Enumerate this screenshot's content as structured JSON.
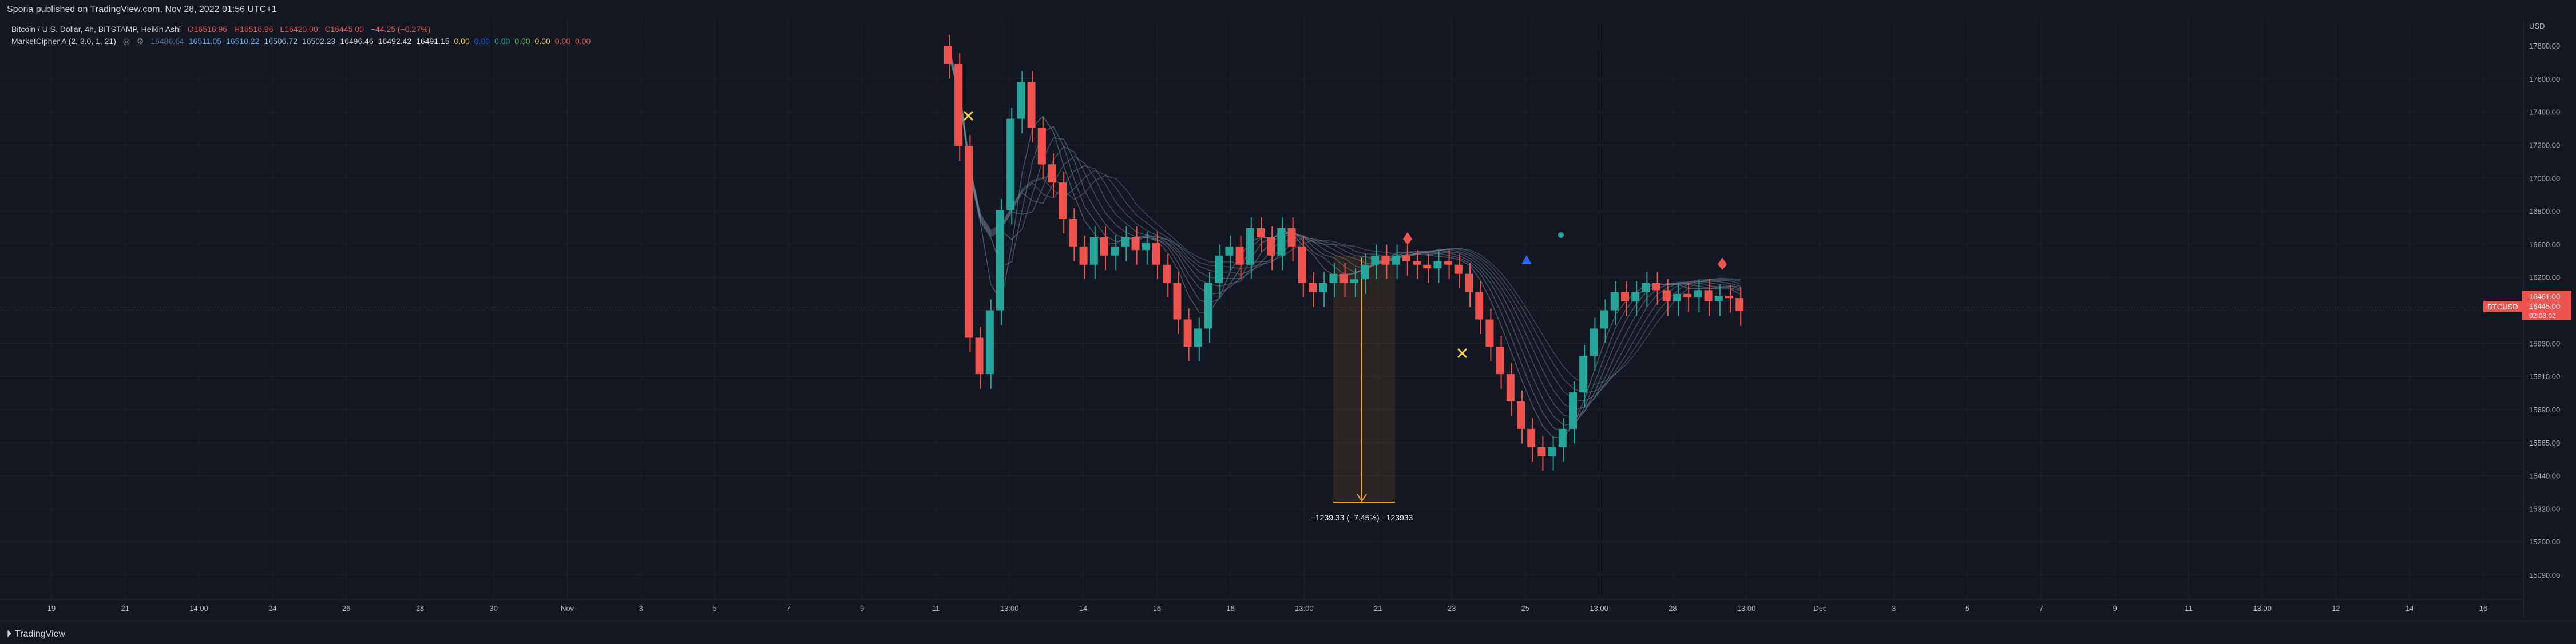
{
  "header": {
    "published": "Sporia published on TradingView.com, Nov 28, 2022 01:56 UTC+1"
  },
  "legend": {
    "symbol": "Bitcoin / U.S. Dollar, 4h, BITSTAMP, Heikin Ashi",
    "o": "O16516.96",
    "h": "H16516.96",
    "l": "L16420.00",
    "c": "C16445.00",
    "chg": "−44.25 (−0.27%)",
    "indicator": "MarketCipher A (2, 3.0, 1, 21)",
    "ind_values": [
      {
        "text": "16486.64",
        "color": "#5a7a9c"
      },
      {
        "text": "16511.05",
        "color": "#5aa9e6"
      },
      {
        "text": "16510.22",
        "color": "#5aa9e6"
      },
      {
        "text": "16506.72",
        "color": "#9cc3e0"
      },
      {
        "text": "16502.23",
        "color": "#b0c4d4"
      },
      {
        "text": "16496.46",
        "color": "#c7d1da"
      },
      {
        "text": "16492.42",
        "color": "#d8dde3"
      },
      {
        "text": "16491.15",
        "color": "#e6e9ed"
      },
      {
        "text": "0.00",
        "color": "#f5d042"
      },
      {
        "text": "0.00",
        "color": "#2962ff"
      },
      {
        "text": "0.00",
        "color": "#26a69a"
      },
      {
        "text": "0.00",
        "color": "#66bb6a"
      },
      {
        "text": "0.00",
        "color": "#f5d042"
      },
      {
        "text": "0.00",
        "color": "#ef5350"
      },
      {
        "text": "0.00",
        "color": "#ef5350"
      }
    ]
  },
  "price_axis": {
    "currency": "USD",
    "ticks": [
      "17800.00",
      "17600.00",
      "17400.00",
      "17200.00",
      "17000.00",
      "16800.00",
      "16600.00",
      "16200.00",
      "16050.00",
      "15930.00",
      "15810.00",
      "15690.00",
      "15565.00",
      "15440.00",
      "15320.00",
      "15200.00",
      "15090.00"
    ],
    "symbol_tag": "BTCUSD",
    "last_price_lines": [
      "16461.00",
      "16445.00",
      "02:03:02"
    ]
  },
  "time_axis": {
    "ticks": [
      "19",
      "21",
      "14:00",
      "24",
      "26",
      "28",
      "30",
      "Nov",
      "3",
      "5",
      "7",
      "9",
      "11",
      "13:00",
      "14",
      "16",
      "18",
      "13:00",
      "21",
      "23",
      "25",
      "13:00",
      "28",
      "13:00",
      "Dec",
      "3",
      "5",
      "7",
      "9",
      "11",
      "13:00",
      "12",
      "14",
      "16"
    ]
  },
  "measure": {
    "label": "−1239.33 (−7.45%) −123933"
  },
  "footer": {
    "brand": "TradingView"
  },
  "colors": {
    "bg": "#131722",
    "up": "#26a69a",
    "down": "#ef5350",
    "ribbon": "#5d6f8a",
    "measure": "#f5a623"
  },
  "chart_data": {
    "type": "candlestick",
    "subtype": "heikin-ashi",
    "timeframe": "4h",
    "series": [
      {
        "name": "BTCUSD",
        "candles": [
          {
            "o": 17900,
            "c": 17800
          },
          {
            "o": 17800,
            "c": 17350
          },
          {
            "o": 17350,
            "c": 16300
          },
          {
            "o": 16300,
            "c": 16100
          },
          {
            "o": 16100,
            "c": 16450
          },
          {
            "o": 16450,
            "c": 17000
          },
          {
            "o": 17000,
            "c": 17500
          },
          {
            "o": 17500,
            "c": 17700
          },
          {
            "o": 17700,
            "c": 17450
          },
          {
            "o": 17450,
            "c": 17250
          },
          {
            "o": 17250,
            "c": 17150
          },
          {
            "o": 17150,
            "c": 16950
          },
          {
            "o": 16950,
            "c": 16800
          },
          {
            "o": 16800,
            "c": 16700
          },
          {
            "o": 16700,
            "c": 16850
          },
          {
            "o": 16850,
            "c": 16750
          },
          {
            "o": 16750,
            "c": 16800
          },
          {
            "o": 16800,
            "c": 16850
          },
          {
            "o": 16850,
            "c": 16780
          },
          {
            "o": 16780,
            "c": 16820
          },
          {
            "o": 16820,
            "c": 16700
          },
          {
            "o": 16700,
            "c": 16600
          },
          {
            "o": 16600,
            "c": 16400
          },
          {
            "o": 16400,
            "c": 16250
          },
          {
            "o": 16250,
            "c": 16350
          },
          {
            "o": 16350,
            "c": 16600
          },
          {
            "o": 16600,
            "c": 16750
          },
          {
            "o": 16750,
            "c": 16800
          },
          {
            "o": 16800,
            "c": 16700
          },
          {
            "o": 16700,
            "c": 16900
          },
          {
            "o": 16900,
            "c": 16850
          },
          {
            "o": 16850,
            "c": 16750
          },
          {
            "o": 16750,
            "c": 16900
          },
          {
            "o": 16900,
            "c": 16800
          },
          {
            "o": 16800,
            "c": 16600
          },
          {
            "o": 16600,
            "c": 16550
          },
          {
            "o": 16550,
            "c": 16600
          },
          {
            "o": 16600,
            "c": 16650
          },
          {
            "o": 16650,
            "c": 16600
          },
          {
            "o": 16600,
            "c": 16620
          },
          {
            "o": 16620,
            "c": 16700
          },
          {
            "o": 16700,
            "c": 16750
          },
          {
            "o": 16750,
            "c": 16700
          },
          {
            "o": 16700,
            "c": 16750
          },
          {
            "o": 16750,
            "c": 16720
          },
          {
            "o": 16720,
            "c": 16700
          },
          {
            "o": 16700,
            "c": 16680
          },
          {
            "o": 16680,
            "c": 16720
          },
          {
            "o": 16720,
            "c": 16700
          },
          {
            "o": 16700,
            "c": 16650
          },
          {
            "o": 16650,
            "c": 16550
          },
          {
            "o": 16550,
            "c": 16400
          },
          {
            "o": 16400,
            "c": 16250
          },
          {
            "o": 16250,
            "c": 16100
          },
          {
            "o": 16100,
            "c": 15950
          },
          {
            "o": 15950,
            "c": 15800
          },
          {
            "o": 15800,
            "c": 15700
          },
          {
            "o": 15700,
            "c": 15650
          },
          {
            "o": 15650,
            "c": 15700
          },
          {
            "o": 15700,
            "c": 15800
          },
          {
            "o": 15800,
            "c": 16000
          },
          {
            "o": 16000,
            "c": 16200
          },
          {
            "o": 16200,
            "c": 16350
          },
          {
            "o": 16350,
            "c": 16450
          },
          {
            "o": 16450,
            "c": 16550
          },
          {
            "o": 16550,
            "c": 16500
          },
          {
            "o": 16500,
            "c": 16550
          },
          {
            "o": 16550,
            "c": 16600
          },
          {
            "o": 16600,
            "c": 16560
          },
          {
            "o": 16560,
            "c": 16500
          },
          {
            "o": 16500,
            "c": 16540
          },
          {
            "o": 16540,
            "c": 16520
          },
          {
            "o": 16520,
            "c": 16560
          },
          {
            "o": 16560,
            "c": 16500
          },
          {
            "o": 16500,
            "c": 16530
          },
          {
            "o": 16530,
            "c": 16517
          },
          {
            "o": 16517,
            "c": 16445
          }
        ]
      }
    ],
    "ylim": [
      15000,
      18000
    ],
    "grid": true
  }
}
